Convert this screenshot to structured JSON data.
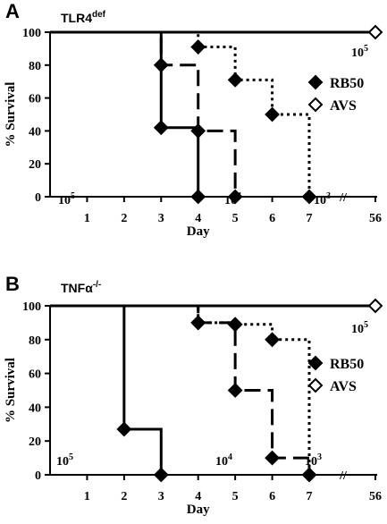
{
  "chart_data": [
    {
      "type": "line",
      "step": true,
      "panel_label": "A",
      "strain_label": "TLR4",
      "strain_label_sup": "def",
      "xlabel": "Day",
      "ylabel": "% Survival",
      "xticks": [
        "1",
        "2",
        "3",
        "4",
        "5",
        "6",
        "7",
        "56"
      ],
      "yticks": [
        "0",
        "20",
        "40",
        "60",
        "80",
        "100"
      ],
      "ylim": [
        0,
        100
      ],
      "axis_break": "//",
      "legend": {
        "position": "right",
        "entries": [
          {
            "label": "RB50",
            "marker": "filled-diamond"
          },
          {
            "label": "AVS",
            "marker": "open-diamond"
          }
        ]
      },
      "series": [
        {
          "strain": "RB50",
          "dose": "10",
          "dose_exp": "5",
          "line_style": "solid",
          "marker": "filled",
          "x": [
            0,
            3,
            4
          ],
          "y": [
            100,
            42,
            0
          ]
        },
        {
          "strain": "RB50",
          "dose": "10",
          "dose_exp": "4",
          "line_style": "long-dash",
          "marker": "filled",
          "x": [
            0,
            3,
            4,
            5
          ],
          "y": [
            100,
            80,
            40,
            0
          ]
        },
        {
          "strain": "RB50",
          "dose": "10",
          "dose_exp": "3",
          "line_style": "dotted",
          "marker": "filled",
          "x": [
            0,
            4,
            5,
            6,
            7
          ],
          "y": [
            100,
            91,
            71,
            50,
            0
          ]
        },
        {
          "strain": "AVS",
          "dose": "10",
          "dose_exp": "5",
          "line_style": "solid",
          "marker": "open",
          "x": [
            0,
            56
          ],
          "y": [
            100,
            100
          ]
        }
      ]
    },
    {
      "type": "line",
      "step": true,
      "panel_label": "B",
      "strain_label": "TNFα",
      "strain_label_sup": "-/-",
      "xlabel": "Day",
      "ylabel": "% Survival",
      "xticks": [
        "1",
        "2",
        "3",
        "4",
        "5",
        "6",
        "7",
        "56"
      ],
      "yticks": [
        "0",
        "20",
        "40",
        "60",
        "80",
        "100"
      ],
      "ylim": [
        0,
        100
      ],
      "axis_break": "//",
      "legend": {
        "position": "right",
        "entries": [
          {
            "label": "RB50",
            "marker": "filled-diamond"
          },
          {
            "label": "AVS",
            "marker": "open-diamond"
          }
        ]
      },
      "series": [
        {
          "strain": "RB50",
          "dose": "10",
          "dose_exp": "5",
          "line_style": "solid",
          "marker": "filled",
          "x": [
            0,
            2,
            3
          ],
          "y": [
            100,
            27,
            0
          ]
        },
        {
          "strain": "RB50",
          "dose": "10",
          "dose_exp": "4",
          "line_style": "long-dash",
          "marker": "filled",
          "x": [
            0,
            4,
            5,
            5,
            6,
            7
          ],
          "y": [
            100,
            90,
            89,
            50,
            10,
            0
          ]
        },
        {
          "strain": "RB50",
          "dose": "10",
          "dose_exp": "3",
          "line_style": "dotted",
          "marker": "filled",
          "x": [
            0,
            4,
            5,
            6,
            7
          ],
          "y": [
            100,
            90,
            89,
            80,
            0
          ]
        },
        {
          "strain": "AVS",
          "dose": "10",
          "dose_exp": "5",
          "line_style": "solid",
          "marker": "open",
          "x": [
            0,
            56
          ],
          "y": [
            100,
            100
          ]
        }
      ]
    }
  ]
}
